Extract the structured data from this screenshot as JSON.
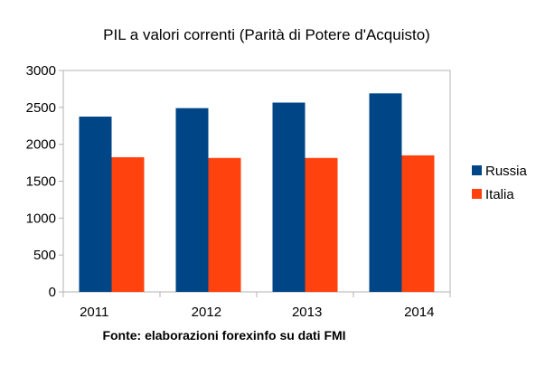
{
  "chart_data": {
    "type": "bar",
    "title": "PIL a valori correnti (Parità di Potere d'Acquisto)",
    "xlabel": "",
    "ylabel": "",
    "categories": [
      "2011",
      "2012",
      "2013",
      "2014"
    ],
    "series": [
      {
        "name": "Russia",
        "values": [
          2375,
          2490,
          2565,
          2690
        ],
        "color": "#004586"
      },
      {
        "name": "Italia",
        "values": [
          1825,
          1815,
          1815,
          1850
        ],
        "color": "#ff420e"
      }
    ],
    "ylim": [
      0,
      3000
    ],
    "yticks": [
      0,
      500,
      1000,
      1500,
      2000,
      2500,
      3000
    ],
    "grid": false,
    "legend_position": "right",
    "source_note": "Fonte: elaborazioni forexinfo su dati FMI"
  }
}
